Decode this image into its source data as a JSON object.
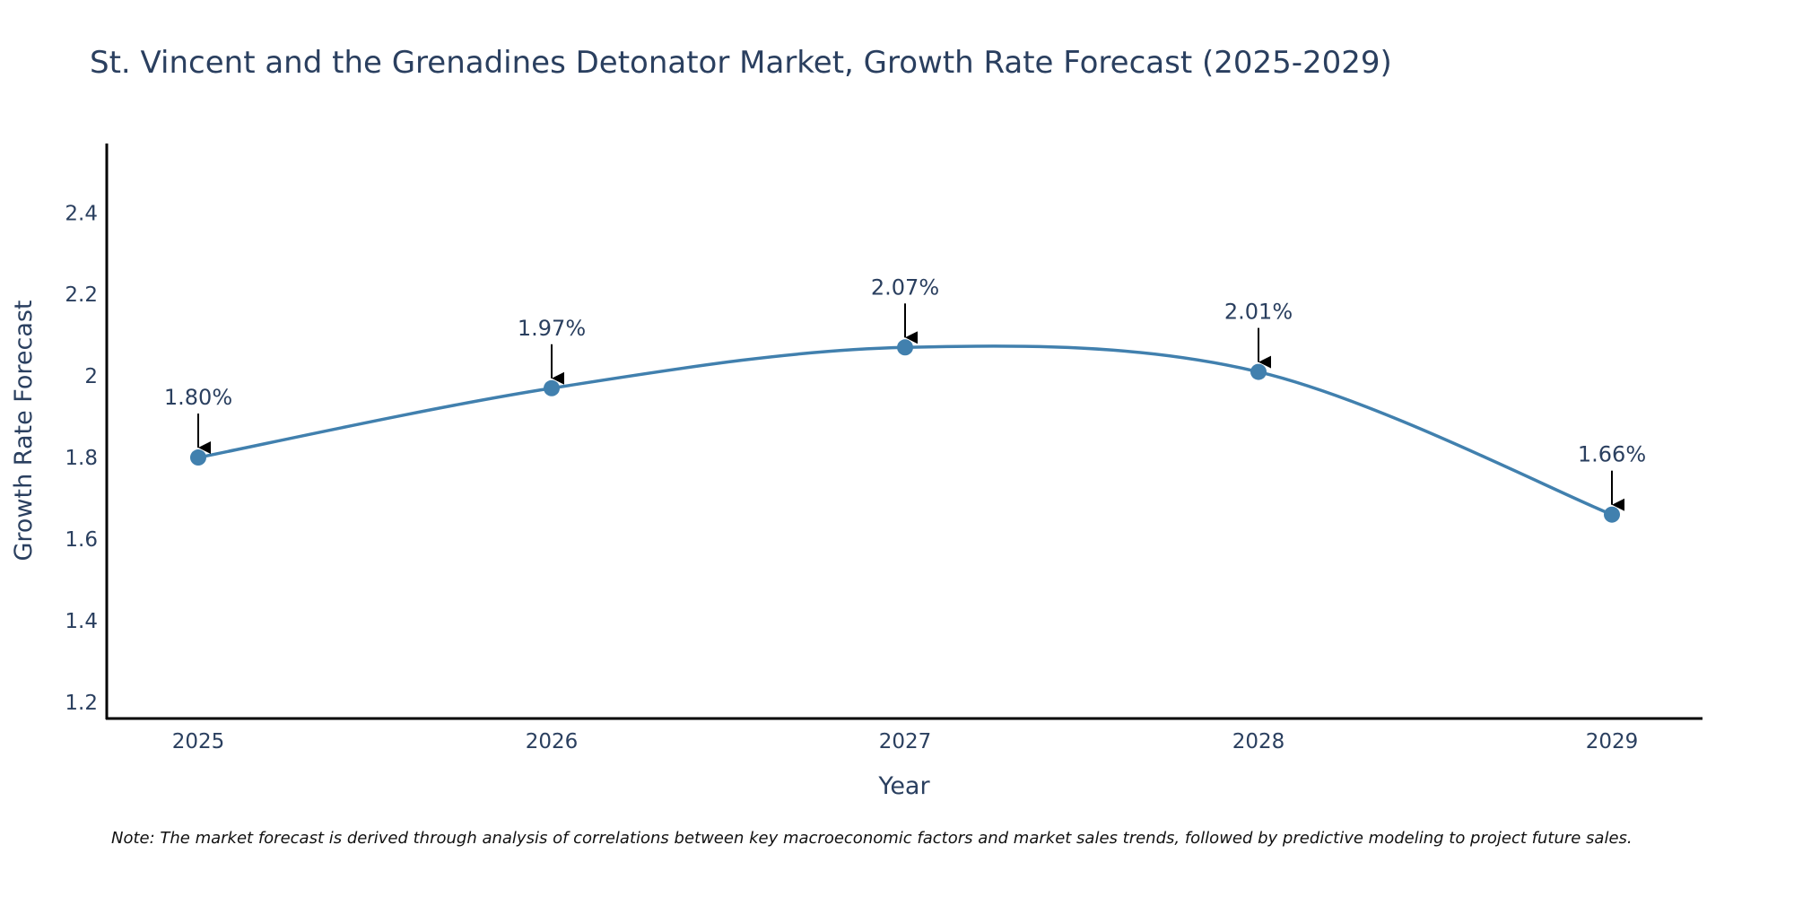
{
  "chart_data": {
    "type": "line",
    "title": "St. Vincent and the Grenadines Detonator Market, Growth Rate Forecast (2025-2029)",
    "xlabel": "Year",
    "ylabel": "Growth Rate Forecast",
    "categories": [
      "2025",
      "2026",
      "2027",
      "2028",
      "2029"
    ],
    "values": [
      1.8,
      1.97,
      2.07,
      2.01,
      1.66
    ],
    "data_labels": [
      "1.80%",
      "1.97%",
      "2.07%",
      "2.01%",
      "1.66%"
    ],
    "ylim": [
      1.16,
      2.57
    ],
    "yticks": [
      1.2,
      1.4,
      1.6,
      1.8,
      2.0,
      2.2,
      2.4
    ],
    "ytick_labels": [
      "1.2",
      "1.4",
      "1.6",
      "1.8",
      "2",
      "2.2",
      "2.4"
    ],
    "grid": false,
    "line_shape": "spline",
    "line_color": "#4180ae",
    "marker_color": "#4180ae",
    "annotation_arrow_color": "#000000",
    "axis_color": "#000000",
    "note": "Note: The market forecast is derived through analysis of correlations between key macroeconomic factors and market sales trends, followed by predictive modeling to project future sales."
  }
}
